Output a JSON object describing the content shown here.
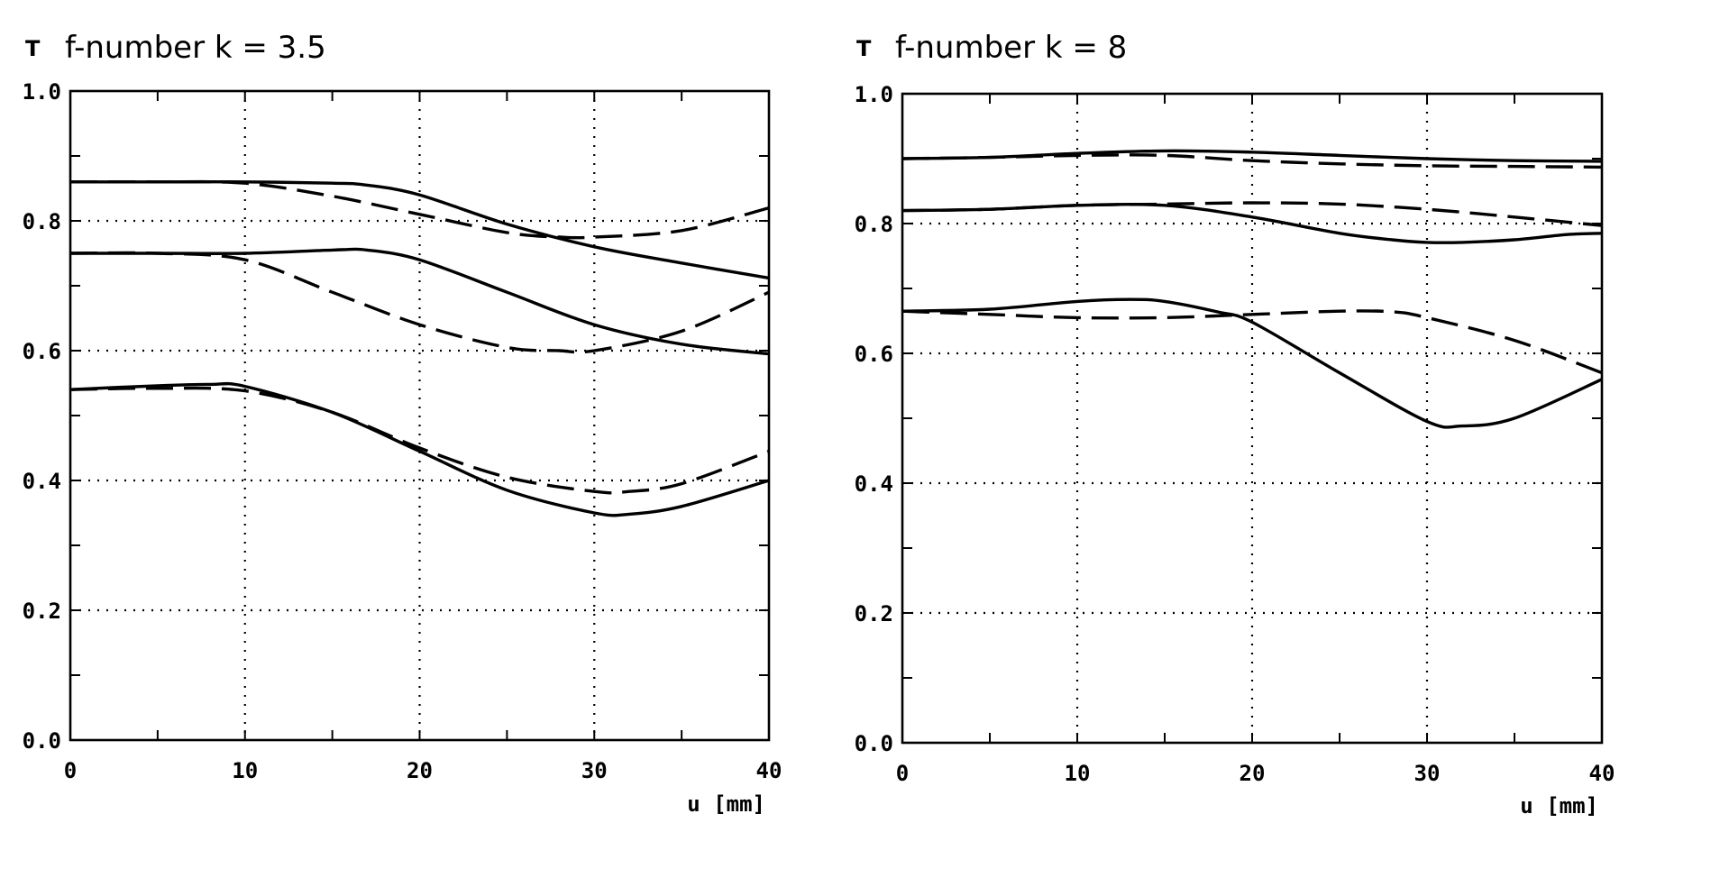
{
  "chart_data": [
    {
      "type": "line",
      "title": "f-number k = 3.5",
      "ylabel": "T",
      "xlabel": "u [mm]",
      "xlim": [
        0,
        40
      ],
      "ylim": [
        0,
        1
      ],
      "xticks": [
        0,
        10,
        20,
        30,
        40
      ],
      "yticks": [
        0.0,
        0.2,
        0.4,
        0.6,
        0.8,
        1.0
      ],
      "xtick_labels": [
        "0",
        "10",
        "20",
        "30",
        "40"
      ],
      "ytick_labels": [
        "0.0",
        "0.2",
        "0.4",
        "0.6",
        "0.8",
        "1.0"
      ],
      "grid": true,
      "series": [
        {
          "style": "solid",
          "x": [
            0,
            5,
            10,
            15,
            17,
            20,
            25,
            30,
            35,
            40
          ],
          "y": [
            0.86,
            0.86,
            0.86,
            0.858,
            0.855,
            0.84,
            0.795,
            0.76,
            0.735,
            0.712
          ]
        },
        {
          "style": "dashed",
          "x": [
            0,
            5,
            10,
            15,
            20,
            25,
            28,
            30,
            35,
            40
          ],
          "y": [
            0.86,
            0.86,
            0.858,
            0.838,
            0.81,
            0.782,
            0.775,
            0.775,
            0.785,
            0.82
          ]
        },
        {
          "style": "solid",
          "x": [
            0,
            5,
            10,
            15,
            17,
            20,
            25,
            30,
            35,
            40
          ],
          "y": [
            0.75,
            0.75,
            0.75,
            0.755,
            0.755,
            0.74,
            0.69,
            0.64,
            0.61,
            0.595
          ]
        },
        {
          "style": "dashed",
          "x": [
            0,
            5,
            10,
            15,
            20,
            25,
            28,
            30,
            35,
            40
          ],
          "y": [
            0.75,
            0.75,
            0.74,
            0.69,
            0.64,
            0.605,
            0.6,
            0.6,
            0.63,
            0.69
          ]
        },
        {
          "style": "solid",
          "x": [
            0,
            5,
            8,
            10,
            15,
            20,
            25,
            30,
            32,
            35,
            40
          ],
          "y": [
            0.54,
            0.546,
            0.548,
            0.545,
            0.505,
            0.445,
            0.385,
            0.35,
            0.348,
            0.36,
            0.4
          ]
        },
        {
          "style": "dashed",
          "x": [
            0,
            5,
            10,
            15,
            20,
            25,
            30,
            32,
            35,
            40
          ],
          "y": [
            0.54,
            0.542,
            0.538,
            0.505,
            0.45,
            0.405,
            0.383,
            0.383,
            0.395,
            0.445
          ]
        }
      ]
    },
    {
      "type": "line",
      "title": "f-number k = 8",
      "ylabel": "T",
      "xlabel": "u [mm]",
      "xlim": [
        0,
        40
      ],
      "ylim": [
        0,
        1
      ],
      "xticks": [
        0,
        10,
        20,
        30,
        40
      ],
      "yticks": [
        0.0,
        0.2,
        0.4,
        0.6,
        0.8,
        1.0
      ],
      "xtick_labels": [
        "0",
        "10",
        "20",
        "30",
        "40"
      ],
      "ytick_labels": [
        "0.0",
        "0.2",
        "0.4",
        "0.6",
        "0.8",
        "1.0"
      ],
      "grid": true,
      "series": [
        {
          "style": "solid",
          "x": [
            0,
            5,
            10,
            15,
            20,
            25,
            30,
            35,
            40
          ],
          "y": [
            0.9,
            0.902,
            0.908,
            0.912,
            0.91,
            0.905,
            0.9,
            0.897,
            0.896
          ]
        },
        {
          "style": "dashed",
          "x": [
            0,
            5,
            10,
            15,
            20,
            25,
            30,
            35,
            40
          ],
          "y": [
            0.9,
            0.902,
            0.905,
            0.905,
            0.897,
            0.892,
            0.889,
            0.888,
            0.887
          ]
        },
        {
          "style": "solid",
          "x": [
            0,
            5,
            10,
            15,
            20,
            25,
            28,
            30,
            32,
            35,
            38,
            40
          ],
          "y": [
            0.82,
            0.822,
            0.828,
            0.828,
            0.81,
            0.785,
            0.775,
            0.771,
            0.771,
            0.775,
            0.783,
            0.785
          ]
        },
        {
          "style": "dashed",
          "x": [
            0,
            5,
            10,
            15,
            20,
            25,
            30,
            35,
            40
          ],
          "y": [
            0.82,
            0.822,
            0.828,
            0.83,
            0.832,
            0.83,
            0.822,
            0.81,
            0.797
          ]
        },
        {
          "style": "solid",
          "x": [
            0,
            5,
            10,
            13,
            15,
            18,
            20,
            25,
            30,
            32,
            35,
            40
          ],
          "y": [
            0.665,
            0.668,
            0.68,
            0.683,
            0.68,
            0.664,
            0.648,
            0.57,
            0.495,
            0.488,
            0.5,
            0.56
          ]
        },
        {
          "style": "dashed",
          "x": [
            0,
            5,
            10,
            15,
            20,
            25,
            28,
            30,
            35,
            40
          ],
          "y": [
            0.665,
            0.66,
            0.655,
            0.655,
            0.66,
            0.665,
            0.664,
            0.655,
            0.62,
            0.57
          ]
        }
      ]
    }
  ]
}
